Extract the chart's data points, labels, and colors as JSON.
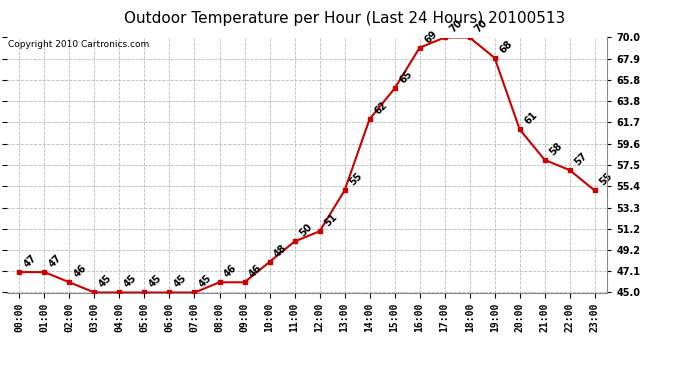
{
  "title": "Outdoor Temperature per Hour (Last 24 Hours) 20100513",
  "copyright": "Copyright 2010 Cartronics.com",
  "hours": [
    "00:00",
    "01:00",
    "02:00",
    "03:00",
    "04:00",
    "05:00",
    "06:00",
    "07:00",
    "08:00",
    "09:00",
    "10:00",
    "11:00",
    "12:00",
    "13:00",
    "14:00",
    "15:00",
    "16:00",
    "17:00",
    "18:00",
    "19:00",
    "20:00",
    "21:00",
    "22:00",
    "23:00"
  ],
  "temps": [
    47,
    47,
    46,
    45,
    45,
    45,
    45,
    45,
    46,
    46,
    48,
    50,
    51,
    55,
    62,
    65,
    69,
    70,
    70,
    68,
    61,
    58,
    57,
    55
  ],
  "ylim": [
    45.0,
    70.0
  ],
  "yticks": [
    45.0,
    47.1,
    49.2,
    51.2,
    53.3,
    55.4,
    57.5,
    59.6,
    61.7,
    63.8,
    65.8,
    67.9,
    70.0
  ],
  "line_color": "#cc0000",
  "marker_color": "#cc0000",
  "bg_color": "#ffffff",
  "grid_color": "#bbbbbb",
  "title_fontsize": 11,
  "copyright_fontsize": 6.5,
  "label_fontsize": 7,
  "tick_fontsize": 7
}
